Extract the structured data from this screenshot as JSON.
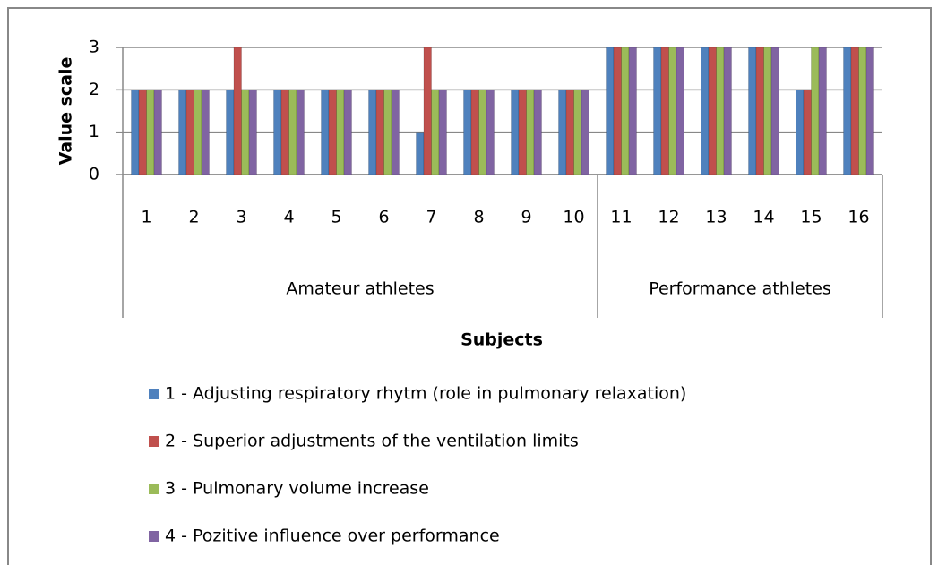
{
  "chart_data": {
    "type": "bar",
    "y_label": "Value scale",
    "x_label": "Subjects",
    "categories": [
      "1",
      "2",
      "3",
      "4",
      "5",
      "6",
      "7",
      "8",
      "9",
      "10",
      "11",
      "12",
      "13",
      "14",
      "15",
      "16"
    ],
    "groups": [
      {
        "label": "Amateur athletes",
        "size": 10
      },
      {
        "label": "Performance athletes",
        "size": 6
      }
    ],
    "series": [
      {
        "name": "1 - Adjusting respiratory rhytm (role in pulmonary relaxation)",
        "color": "#4f81bd",
        "values": [
          2,
          2,
          2,
          2,
          2,
          2,
          1,
          2,
          2,
          2,
          3,
          3,
          3,
          3,
          2,
          3
        ]
      },
      {
        "name": "2 - Superior adjustments of the ventilation limits",
        "color": "#c0504d",
        "values": [
          2,
          2,
          3,
          2,
          2,
          2,
          3,
          2,
          2,
          2,
          3,
          3,
          3,
          3,
          2,
          3
        ]
      },
      {
        "name": "3 - Pulmonary volume increase",
        "color": "#9bbb59",
        "values": [
          2,
          2,
          2,
          2,
          2,
          2,
          2,
          2,
          2,
          2,
          3,
          3,
          3,
          3,
          3,
          3
        ]
      },
      {
        "name": "4 - Pozitive influence over performance",
        "color": "#8064a2",
        "values": [
          2,
          2,
          2,
          2,
          2,
          2,
          2,
          2,
          2,
          2,
          3,
          3,
          3,
          3,
          3,
          3
        ]
      }
    ],
    "ylim": [
      0,
      3
    ],
    "yticks": [
      0,
      1,
      2,
      3
    ],
    "grid": true
  }
}
